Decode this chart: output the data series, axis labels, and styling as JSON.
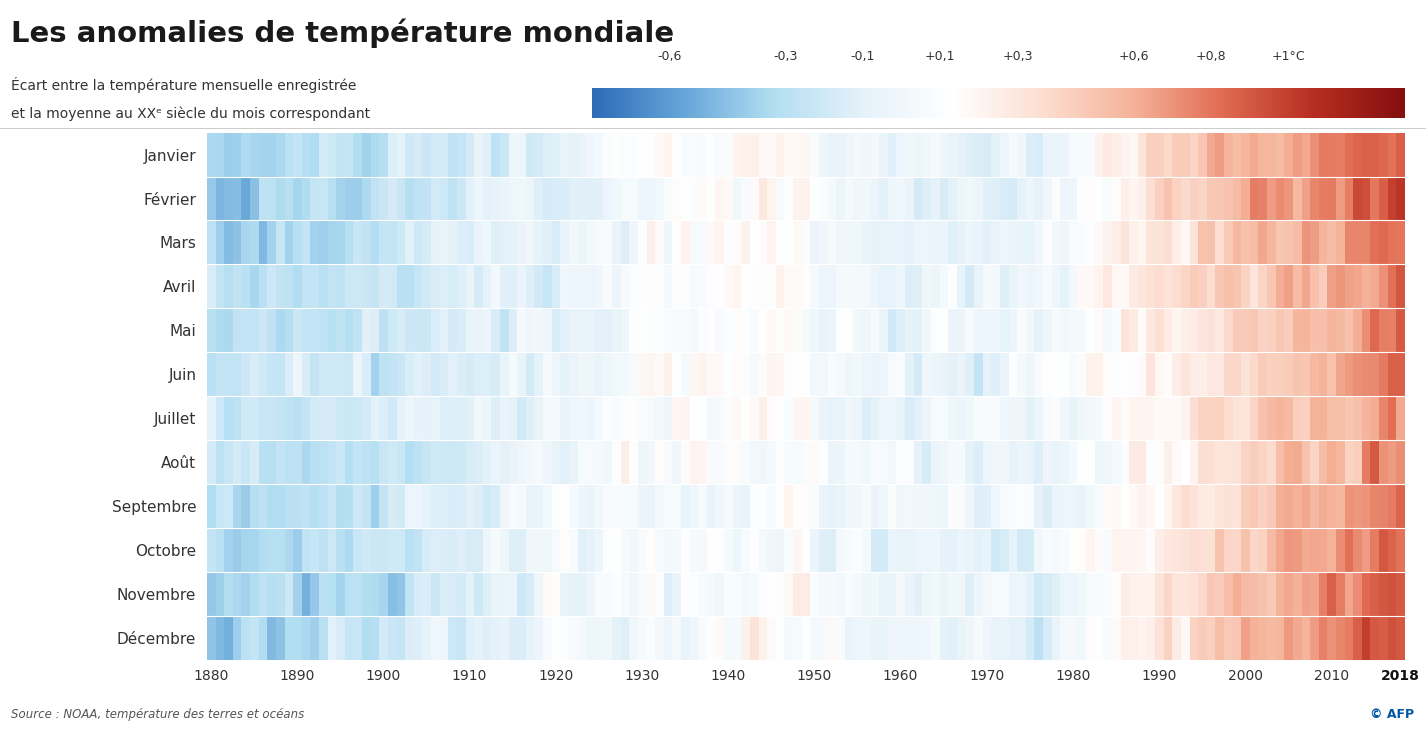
{
  "title": "Les anomalies de température mondiale",
  "subtitle_line1": "Écart entre la température mensuelle enregistrée",
  "subtitle_line2": "et la moyenne au XXᵉ siècle du mois correspondant",
  "source": "Source : NOAA, température des terres et océans",
  "months_fr": [
    "Janvier",
    "Février",
    "Mars",
    "Avril",
    "Mai",
    "Juin",
    "Juillet",
    "Août",
    "Septembre",
    "Octobre",
    "Novembre",
    "Décembre"
  ],
  "year_start": 1880,
  "year_end": 2018,
  "colorbar_labels": [
    "-0,6",
    "-0,3",
    "-0,1",
    "+0,1",
    "+0,3",
    "+0,6",
    "+0,8",
    "+1°C"
  ],
  "colorbar_values": [
    -0.6,
    -0.3,
    -0.1,
    0.1,
    0.3,
    0.6,
    0.8,
    1.0
  ],
  "colorbar_colors": [
    "#3a7abf",
    "#7ab3d9",
    "#b8d9ed",
    "#f0f4f8",
    "#f9ddd5",
    "#e8967e",
    "#c94030",
    "#8b1a10"
  ],
  "vmin": -0.8,
  "vmax": 1.3,
  "background_color": "#ffffff",
  "title_color": "#1a1a1a",
  "xticks": [
    1880,
    1890,
    1900,
    1910,
    1920,
    1930,
    1940,
    1950,
    1960,
    1970,
    1980,
    1990,
    2000,
    2010,
    2018
  ]
}
